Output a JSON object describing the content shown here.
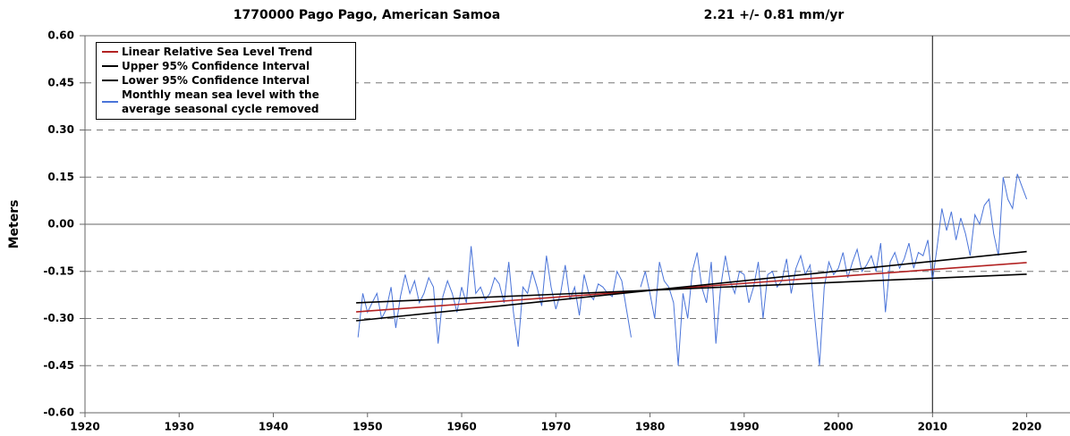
{
  "chart_data": {
    "type": "line",
    "title": "1770000 Pago Pago, American Samoa",
    "subtitle": "2.21 +/-  0.81 mm/yr",
    "ylabel": "Meters",
    "xlim": [
      1920,
      2024.6
    ],
    "ylim": [
      -0.6,
      0.6
    ],
    "xticks": [
      1920,
      1930,
      1940,
      1950,
      1960,
      1970,
      1980,
      1990,
      2000,
      2010,
      2020
    ],
    "yticks": [
      {
        "value": 0.6,
        "label": "0.60"
      },
      {
        "value": 0.45,
        "label": "0.45"
      },
      {
        "value": 0.3,
        "label": "0.30"
      },
      {
        "value": 0.15,
        "label": "0.15"
      },
      {
        "value": 0,
        "label": "0.00"
      },
      {
        "value": -0.15,
        "label": "-0.15"
      },
      {
        "value": -0.3,
        "label": "-0.30"
      },
      {
        "value": -0.45,
        "label": "-0.45"
      },
      {
        "value": -0.6,
        "label": "-0.60"
      }
    ],
    "grid": true,
    "vertical_line_x": 2010,
    "legend": "top-left",
    "series": [
      {
        "name": "Linear Relative Sea Level Trend",
        "color": "#b22222",
        "x": [
          1948.8,
          2020
        ],
        "values": [
          -0.279,
          -0.122
        ]
      },
      {
        "name": "Upper 95% Confidence Interval",
        "color": "#000000",
        "x": [
          1948.8,
          2020
        ],
        "values": [
          -0.307,
          -0.087
        ]
      },
      {
        "name": "Lower 95% Confidence Interval",
        "color": "#000000",
        "x": [
          1948.8,
          2020
        ],
        "values": [
          -0.25,
          -0.159
        ]
      },
      {
        "name": "Monthly mean sea level with the average seasonal cycle removed",
        "color": "#4a74d9",
        "x": [
          1949,
          1949.5,
          1950,
          1950.5,
          1951,
          1951.5,
          1952,
          1952.5,
          1953,
          1953.5,
          1954,
          1954.5,
          1955,
          1955.5,
          1956,
          1956.5,
          1957,
          1957.5,
          1958,
          1958.5,
          1959,
          1959.5,
          1960,
          1960.5,
          1961,
          1961.5,
          1962,
          1962.5,
          1963,
          1963.5,
          1964,
          1964.5,
          1965,
          1965.5,
          1966,
          1966.5,
          1967,
          1967.5,
          1968,
          1968.5,
          1969,
          1969.5,
          1970,
          1970.5,
          1971,
          1971.5,
          1972,
          1972.5,
          1973,
          1973.5,
          1974,
          1974.5,
          1975,
          1975.5,
          1976,
          1976.5,
          1977,
          1977.5,
          1978,
          1978.5,
          1979,
          1979.5,
          1980,
          1980.5,
          1981,
          1981.5,
          1982,
          1982.5,
          1983,
          1983.5,
          1984,
          1984.5,
          1985,
          1985.5,
          1986,
          1986.5,
          1987,
          1987.5,
          1988,
          1988.5,
          1989,
          1989.5,
          1990,
          1990.5,
          1991,
          1991.5,
          1992,
          1992.5,
          1993,
          1993.5,
          1994,
          1994.5,
          1995,
          1995.5,
          1996,
          1996.5,
          1997,
          1997.5,
          1998,
          1998.5,
          1999,
          1999.5,
          2000,
          2000.5,
          2001,
          2001.5,
          2002,
          2002.5,
          2003,
          2003.5,
          2004,
          2004.5,
          2005,
          2005.5,
          2006,
          2006.5,
          2007,
          2007.5,
          2008,
          2008.5,
          2009,
          2009.5,
          2010,
          2010.5,
          2011,
          2011.5,
          2012,
          2012.5,
          2013,
          2013.5,
          2014,
          2014.5,
          2015,
          2015.5,
          2016,
          2016.5,
          2017,
          2017.5,
          2018,
          2018.5,
          2019,
          2019.5,
          2020
        ],
        "values": [
          -0.36,
          -0.22,
          -0.28,
          -0.25,
          -0.22,
          -0.3,
          -0.27,
          -0.2,
          -0.33,
          -0.23,
          -0.16,
          -0.22,
          -0.18,
          -0.25,
          -0.22,
          -0.17,
          -0.2,
          -0.38,
          -0.23,
          -0.18,
          -0.22,
          -0.28,
          -0.2,
          -0.25,
          -0.07,
          -0.22,
          -0.2,
          -0.24,
          -0.22,
          -0.17,
          -0.19,
          -0.25,
          -0.12,
          -0.28,
          -0.39,
          -0.2,
          -0.22,
          -0.15,
          -0.2,
          -0.26,
          -0.1,
          -0.2,
          -0.27,
          -0.22,
          -0.13,
          -0.24,
          -0.2,
          -0.29,
          -0.16,
          -0.22,
          -0.24,
          -0.19,
          -0.2,
          -0.22,
          -0.23,
          -0.15,
          -0.18,
          -0.27,
          -0.36,
          null,
          -0.2,
          -0.15,
          -0.22,
          -0.3,
          -0.12,
          -0.18,
          -0.2,
          -0.25,
          -0.45,
          -0.22,
          -0.3,
          -0.15,
          -0.09,
          -0.2,
          -0.25,
          -0.12,
          -0.38,
          -0.2,
          -0.1,
          -0.18,
          -0.22,
          -0.15,
          -0.16,
          -0.25,
          -0.2,
          -0.12,
          -0.3,
          -0.16,
          -0.15,
          -0.2,
          -0.18,
          -0.11,
          -0.22,
          -0.14,
          -0.1,
          -0.16,
          -0.13,
          -0.3,
          -0.45,
          -0.2,
          -0.12,
          -0.16,
          -0.14,
          -0.09,
          -0.17,
          -0.12,
          -0.08,
          -0.15,
          -0.13,
          -0.1,
          -0.15,
          -0.06,
          -0.28,
          -0.12,
          -0.09,
          -0.14,
          -0.11,
          -0.06,
          -0.14,
          -0.09,
          -0.1,
          -0.05,
          -0.18,
          -0.07,
          0.05,
          -0.02,
          0.04,
          -0.05,
          0.02,
          -0.03,
          -0.1,
          0.03,
          0.0,
          0.06,
          0.08,
          -0.03,
          -0.1,
          0.15,
          0.08,
          0.05,
          0.16,
          0.12,
          0.08
        ]
      }
    ]
  }
}
